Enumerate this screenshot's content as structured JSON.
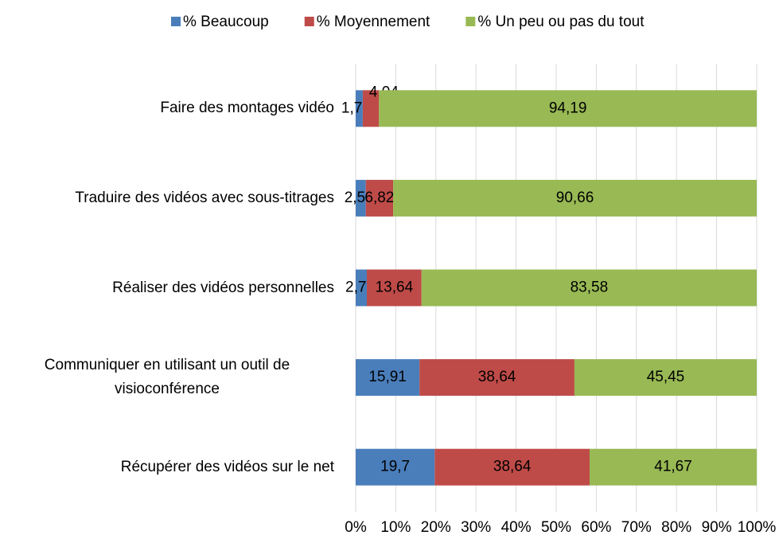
{
  "chart_data": {
    "type": "stacked_barh",
    "categories": [
      "Faire des montages vidéo",
      "Traduire des vidéos avec sous-titrages",
      "Réaliser des vidéos personnelles",
      "Communiquer en utilisant un outil de visioconférence",
      "Récupérer des vidéos sur le net"
    ],
    "series": [
      {
        "name": "% Beaucoup",
        "color": "#4a7ebb",
        "values": [
          1.77,
          2.52,
          2.78,
          15.91,
          19.7
        ],
        "value_labels": [
          "1,77",
          "2,52",
          "2,78",
          "15,91",
          "19,7"
        ]
      },
      {
        "name": "% Moyennement",
        "color": "#be4b48",
        "values": [
          4.04,
          6.82,
          13.64,
          38.64,
          38.64
        ],
        "value_labels": [
          "4,04",
          "6,82",
          "13,64",
          "38,64",
          "38,64"
        ]
      },
      {
        "name": "% Un peu ou pas du tout",
        "color": "#98b954",
        "values": [
          94.19,
          90.66,
          83.58,
          45.45,
          41.67
        ],
        "value_labels": [
          "94,19",
          "90,66",
          "83,58",
          "45,45",
          "41,67"
        ]
      }
    ],
    "xlim": [
      0,
      100
    ],
    "xticks": [
      {
        "value": 0,
        "label": "0%"
      },
      {
        "value": 10,
        "label": "10%"
      },
      {
        "value": 20,
        "label": "20%"
      },
      {
        "value": 30,
        "label": "30%"
      },
      {
        "value": 40,
        "label": "40%"
      },
      {
        "value": 50,
        "label": "50%"
      },
      {
        "value": 60,
        "label": "60%"
      },
      {
        "value": 70,
        "label": "70%"
      },
      {
        "value": 80,
        "label": "80%"
      },
      {
        "value": 90,
        "label": "90%"
      },
      {
        "value": 100,
        "label": "100%"
      }
    ],
    "grid": true,
    "legend": "top"
  }
}
